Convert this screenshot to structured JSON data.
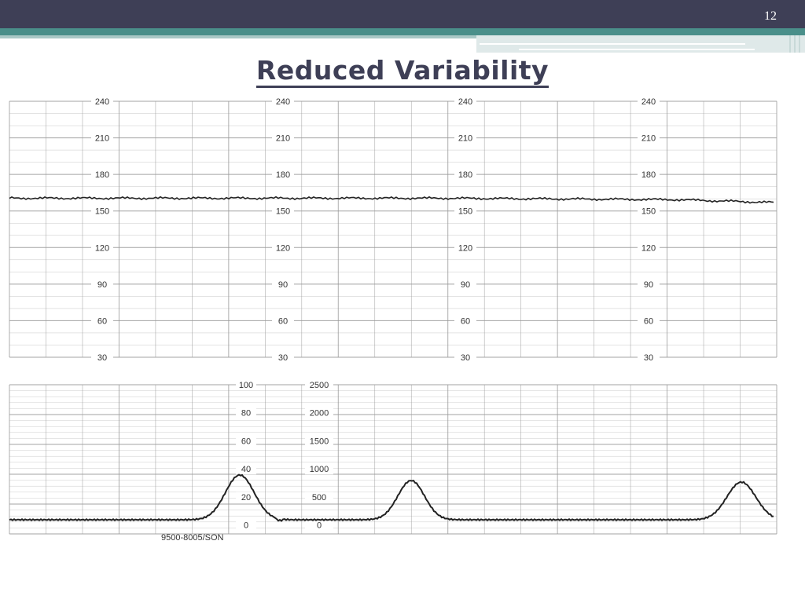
{
  "slide": {
    "number": "12",
    "title": "Reduced Variability"
  },
  "colors": {
    "header_bar": "#3e3f56",
    "teal_band": "#4a8f8a",
    "title_text": "#3e3f56",
    "grid": "#9a9a9a",
    "trace": "#222222"
  },
  "fhr_panel": {
    "scale_labels": [
      "240",
      "210",
      "180",
      "150",
      "120",
      "90",
      "60",
      "30"
    ]
  },
  "uc_panel": {
    "scale_left_labels": [
      "100",
      "80",
      "60",
      "40",
      "20",
      "0"
    ],
    "scale_right_labels": [
      "2500",
      "2000",
      "1500",
      "1000",
      "500",
      "0"
    ],
    "paper_code": "9500-8005/SON"
  }
}
